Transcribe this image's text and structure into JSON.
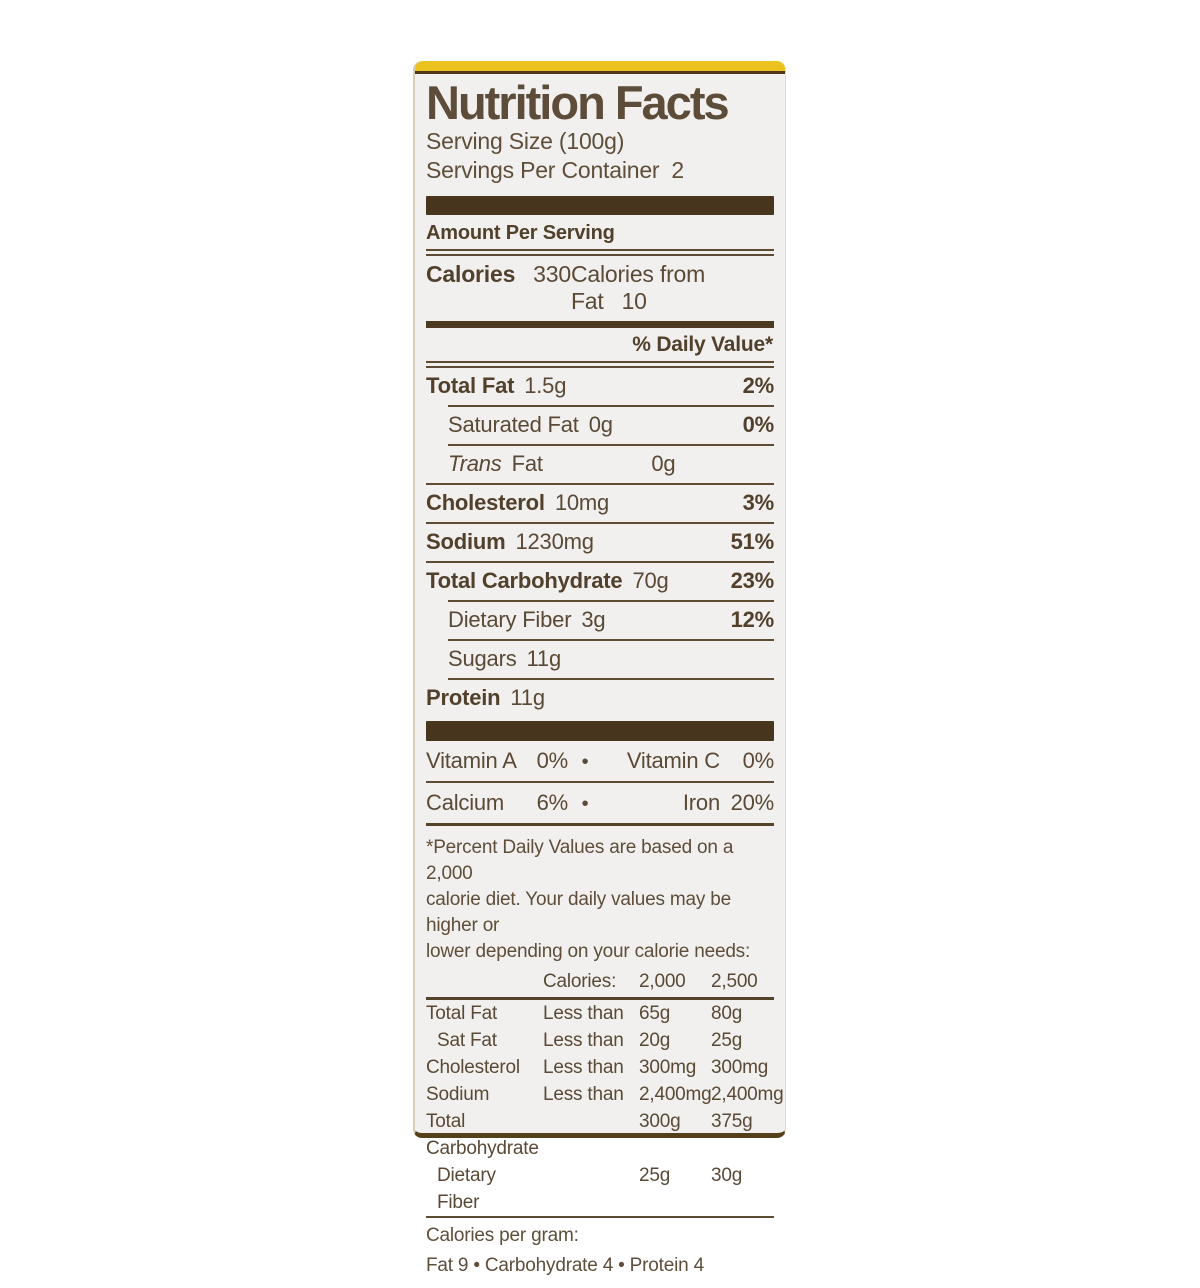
{
  "colors": {
    "label_background": "#f1f0ee",
    "ink_brown": "#5a4936",
    "bar_brown": "#47361d",
    "package_yellow": "#ecc31e"
  },
  "label": {
    "title": "Nutrition Facts",
    "serving_size": "Serving Size (100g)",
    "servings_per_container_label": "Servings Per Container",
    "servings_per_container_value": "2",
    "amount_per_serving": "Amount Per Serving",
    "calories_label": "Calories",
    "calories_value": "330",
    "calories_from_fat_label": "Calories from Fat",
    "calories_from_fat_value": "10",
    "daily_value_header": "% Daily Value*",
    "rows": [
      {
        "name": "Total Fat",
        "amount": "1.5g",
        "dv": "2%"
      },
      {
        "name": "Saturated Fat",
        "amount": "0g",
        "dv": "0%"
      },
      {
        "name": "Trans",
        "name2": "Fat",
        "amount": "0g",
        "dv": ""
      },
      {
        "name": "Cholesterol",
        "amount": "10mg",
        "dv": "3%"
      },
      {
        "name": "Sodium",
        "amount": "1230mg",
        "dv": "51%"
      },
      {
        "name": "Total Carbohydrate",
        "amount": "70g",
        "dv": "23%"
      },
      {
        "name": "Dietary Fiber",
        "amount": "3g",
        "dv": "12%"
      },
      {
        "name": "Sugars",
        "amount": "11g",
        "dv": ""
      },
      {
        "name": "Protein",
        "amount": "11g",
        "dv": ""
      }
    ],
    "vitamins": [
      {
        "left_name": "Vitamin A",
        "left_value": "0%",
        "bullet": "•",
        "right_name": "Vitamin C",
        "right_value": "0%"
      },
      {
        "left_name": "Calcium",
        "left_value": "6%",
        "bullet": "•",
        "right_name": "Iron",
        "right_value": "20%"
      }
    ],
    "footnote_lines": [
      "*Percent Daily Values are based on a 2,000",
      "calorie diet.  Your daily values may be higher or",
      "lower depending on your calorie needs:"
    ],
    "footnote_table": {
      "header": {
        "label": "Calories:",
        "col1": "2,000",
        "col2": "2,500"
      },
      "rows": [
        {
          "name": "Total Fat",
          "qualifier": "Less than",
          "col1": "65g",
          "col2": "80g"
        },
        {
          "name": "Sat Fat",
          "qualifier": "Less than",
          "col1": "20g",
          "col2": "25g"
        },
        {
          "name": "Cholesterol",
          "qualifier": "Less than",
          "col1": "300mg",
          "col2": "300mg"
        },
        {
          "name": "Sodium",
          "qualifier": "Less than",
          "col1": "2,400mg",
          "col2": "2,400mg"
        },
        {
          "name": "Total Carbohydrate",
          "qualifier": "",
          "col1": "300g",
          "col2": "375g"
        },
        {
          "name": "Dietary Fiber",
          "qualifier": "",
          "col1": "25g",
          "col2": "30g"
        }
      ]
    },
    "calories_per_gram_label": "Calories per gram:",
    "calories_per_gram_values": "Fat 9  •  Carbohydrate 4  •  Protein 4"
  }
}
